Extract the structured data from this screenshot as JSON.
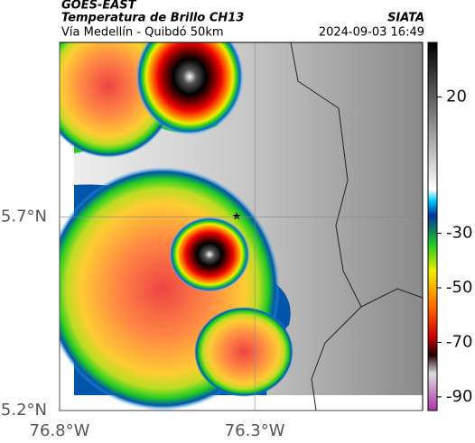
{
  "header": {
    "source": "GOES-EAST",
    "title": "Temperatura de Brillo CH13",
    "subtitle": "Vía Medellín - Quibdó 50km",
    "agency": "SIATA",
    "datetime": "2024-09-03 16:49"
  },
  "axes": {
    "xlim": [
      -76.8,
      -75.87
    ],
    "ylim": [
      5.2,
      6.15
    ],
    "xticks": [
      {
        "value": -76.8,
        "label": "76.8°W"
      },
      {
        "value": -76.3,
        "label": "76.3°W"
      }
    ],
    "yticks": [
      {
        "value": 5.7,
        "label": "5.7°N"
      },
      {
        "value": 5.2,
        "label": "5.2°N"
      }
    ]
  },
  "colorbar": {
    "lim": [
      -95,
      40
    ],
    "ticks": [
      20,
      -30,
      -50,
      -70,
      -90
    ]
  }
}
